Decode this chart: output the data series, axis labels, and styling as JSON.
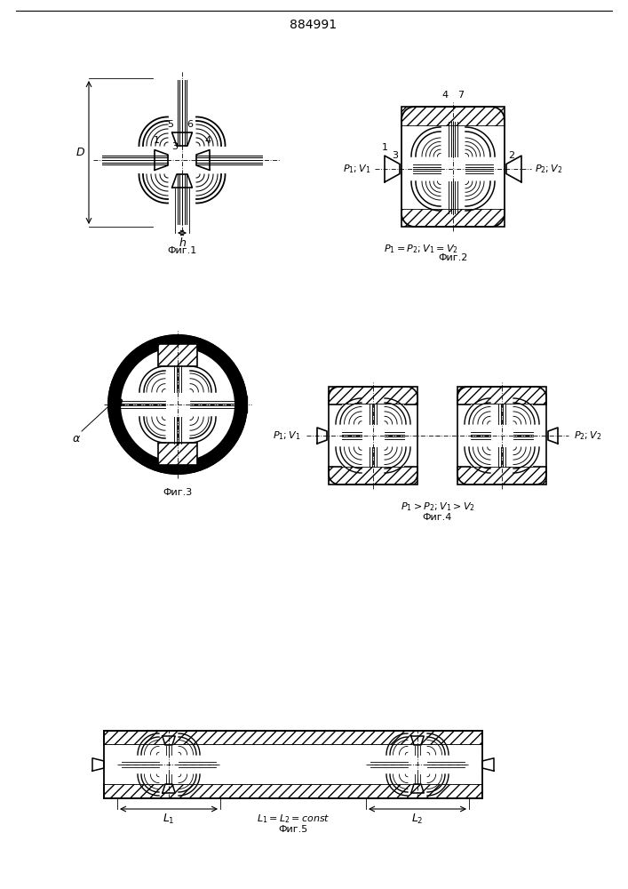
{
  "title": "884991",
  "fig1_label": "Фиг.1",
  "fig2_label": "Фиг.2",
  "fig3_label": "Фиг.3",
  "fig4_label": "Фиг.4",
  "fig5_label": "Фиг.5",
  "fig2_p1v1": "$P_1 ; V_1$",
  "fig2_p2v2": "$P_2 ; V_2$",
  "fig2_eq": "$P_1 = P_2 ; V_1 = V_2$",
  "fig4_p1v1": "$P_1 ; V_1$",
  "fig4_p2v2": "$P_2 ; V_2$",
  "fig4_eq": "$P_1 > P_2 ; V_1 > V_2$",
  "fig5_eq": "$L_1 = L_2 = const$",
  "lc": "#000000",
  "bg": "#ffffff"
}
